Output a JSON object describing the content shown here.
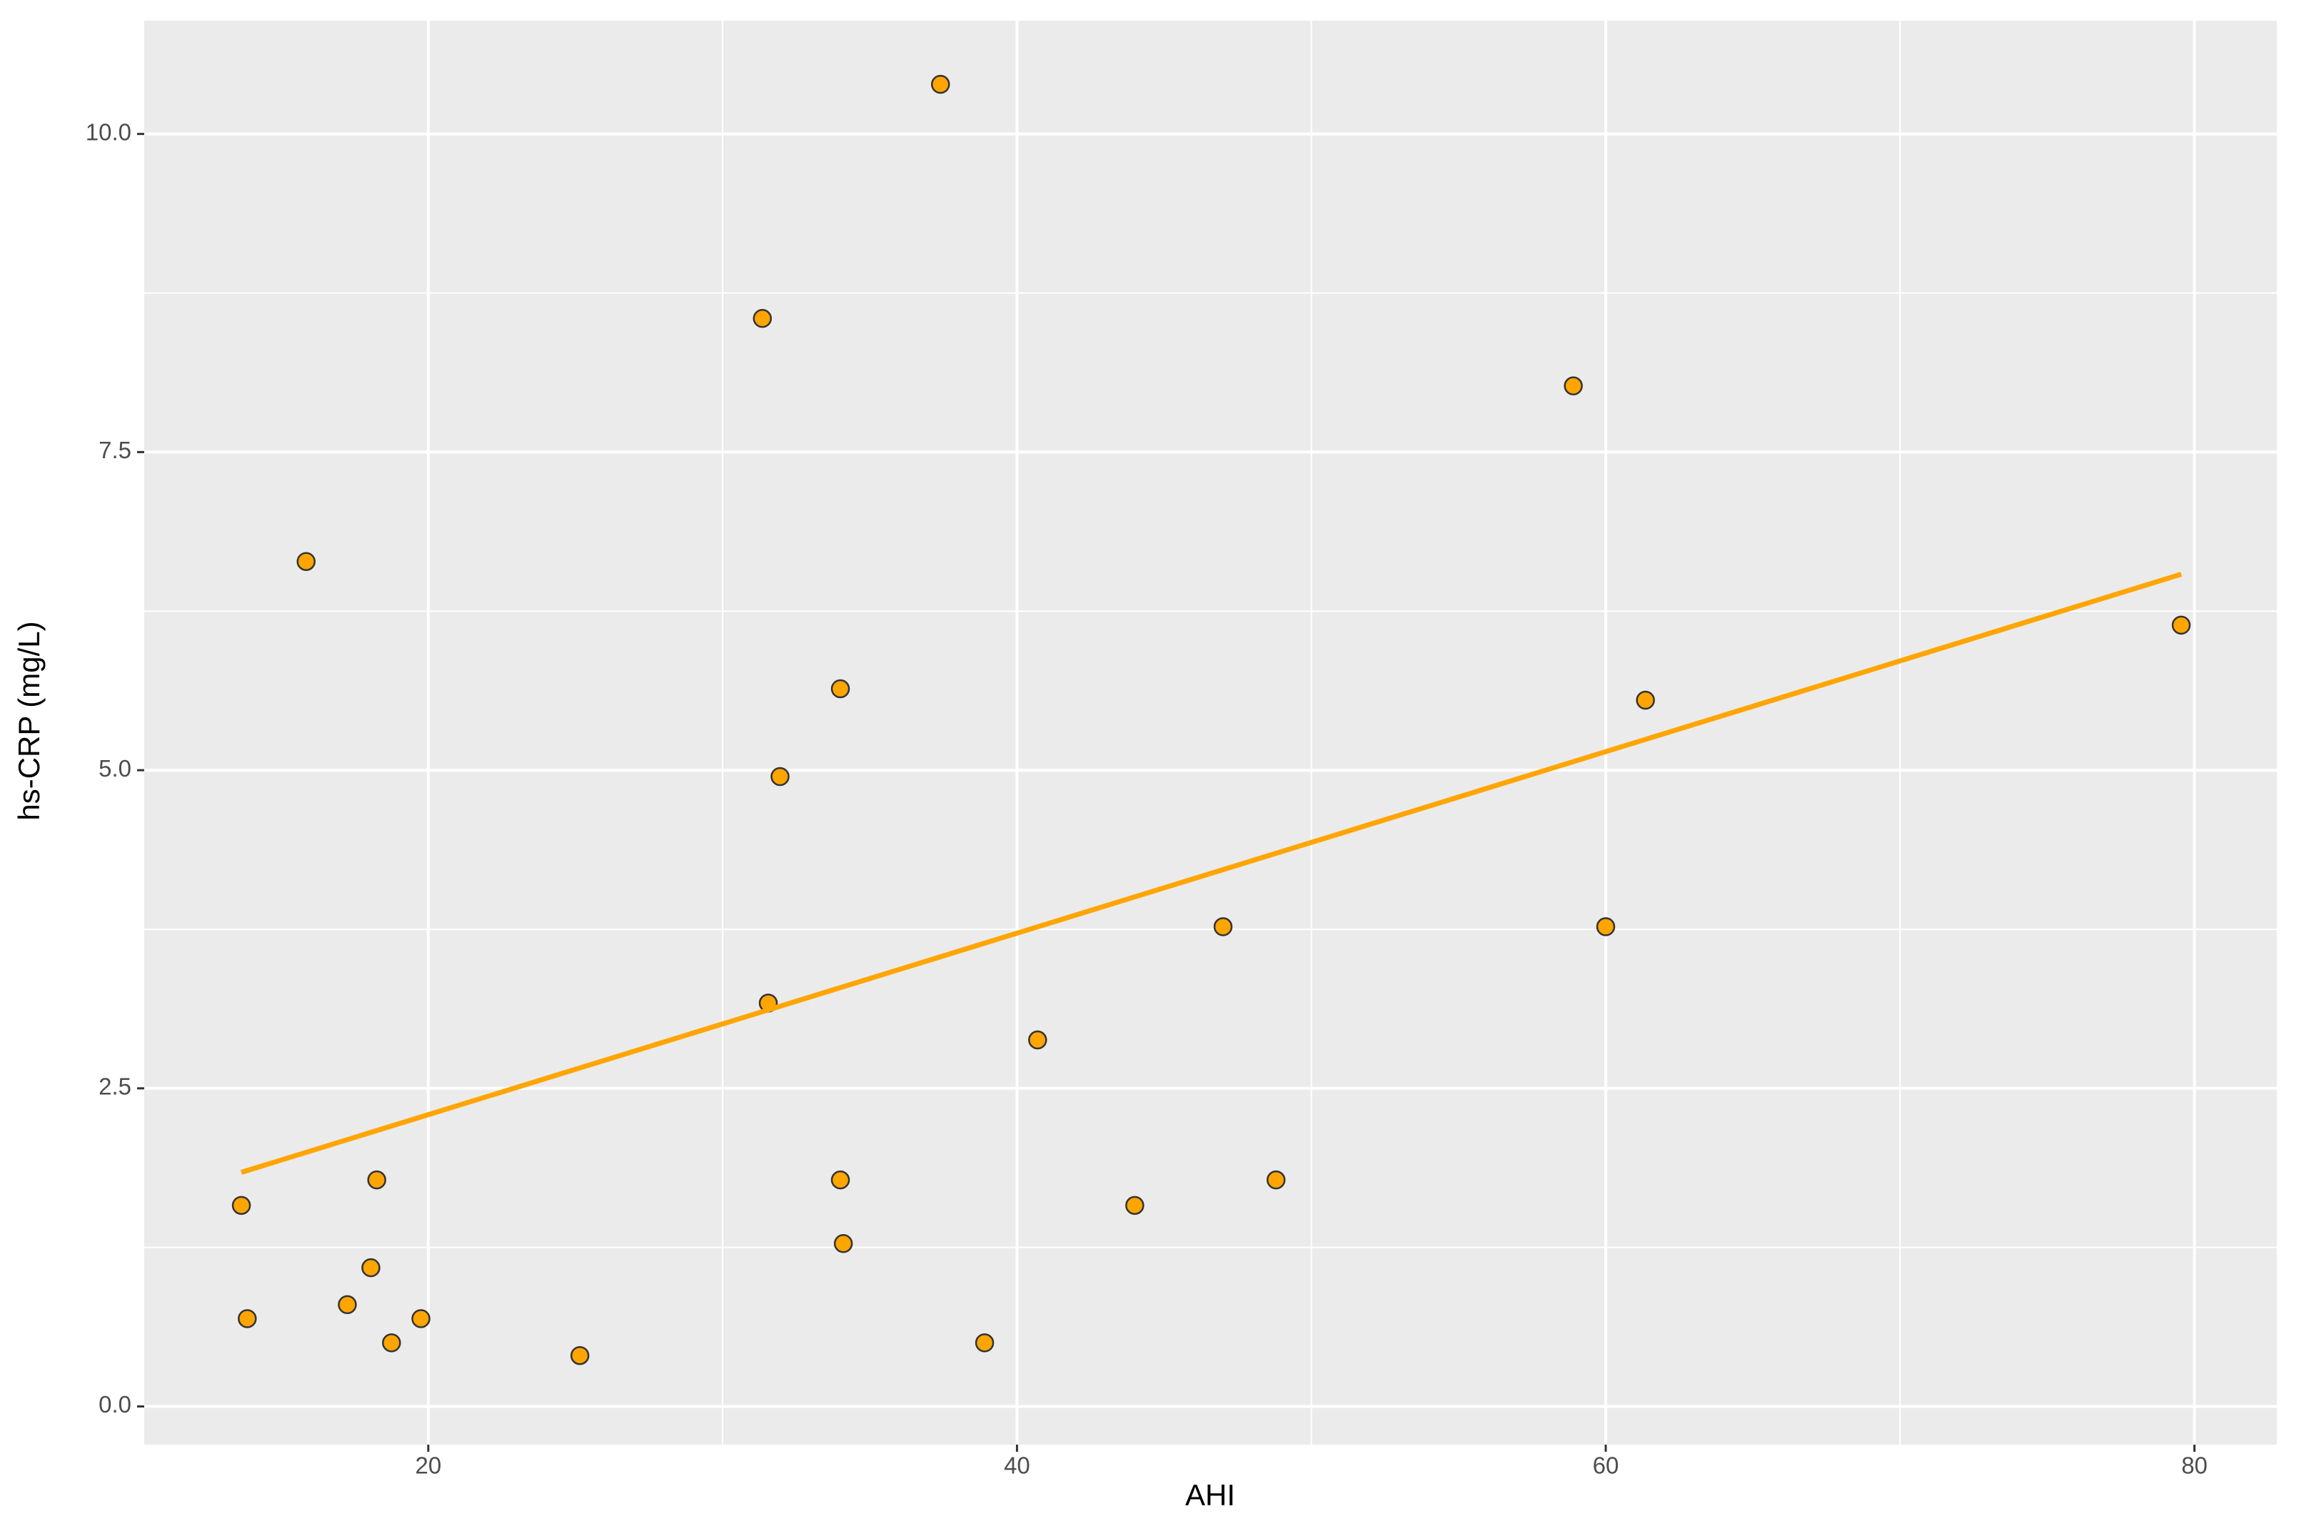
{
  "chart_data": {
    "type": "scatter",
    "x_label": "AHI",
    "y_label": "hs-CRP (mg/L)",
    "x": [
      13.65,
      13.85,
      15.85,
      17.25,
      18.05,
      18.25,
      18.75,
      19.75,
      25.15,
      31.35,
      31.55,
      31.95,
      34.0,
      34.0,
      34.1,
      37.4,
      38.9,
      40.7,
      44.0,
      47.0,
      48.8,
      58.9,
      60.0,
      61.35,
      79.55
    ],
    "y": [
      1.58,
      0.69,
      6.64,
      0.8,
      1.09,
      1.78,
      0.5,
      0.69,
      0.4,
      8.55,
      3.17,
      4.95,
      5.64,
      1.78,
      1.28,
      10.39,
      0.5,
      2.88,
      1.58,
      3.77,
      1.78,
      8.02,
      3.77,
      5.55,
      6.14
    ],
    "color": "#FFA500",
    "fit": {
      "x": [
        13.65,
        79.55
      ],
      "y": [
        1.84,
        6.54
      ],
      "color": "#FFA500"
    },
    "xlim": [
      10.35,
      82.8
    ],
    "ylim": [
      -0.3,
      10.89
    ],
    "xticks": [
      20,
      40,
      60,
      80
    ],
    "yticks": [
      {
        "value": 0,
        "label": "0.0"
      },
      {
        "value": 2.5,
        "label": "2.5"
      },
      {
        "value": 5,
        "label": "5.0"
      },
      {
        "value": 7.5,
        "label": "7.5"
      },
      {
        "value": 10,
        "label": "10.0"
      }
    ],
    "x_minor_ticks": [
      30,
      50,
      70
    ],
    "y_minor_ticks": [
      1.25,
      3.75,
      6.25,
      8.75
    ],
    "grid": true
  }
}
